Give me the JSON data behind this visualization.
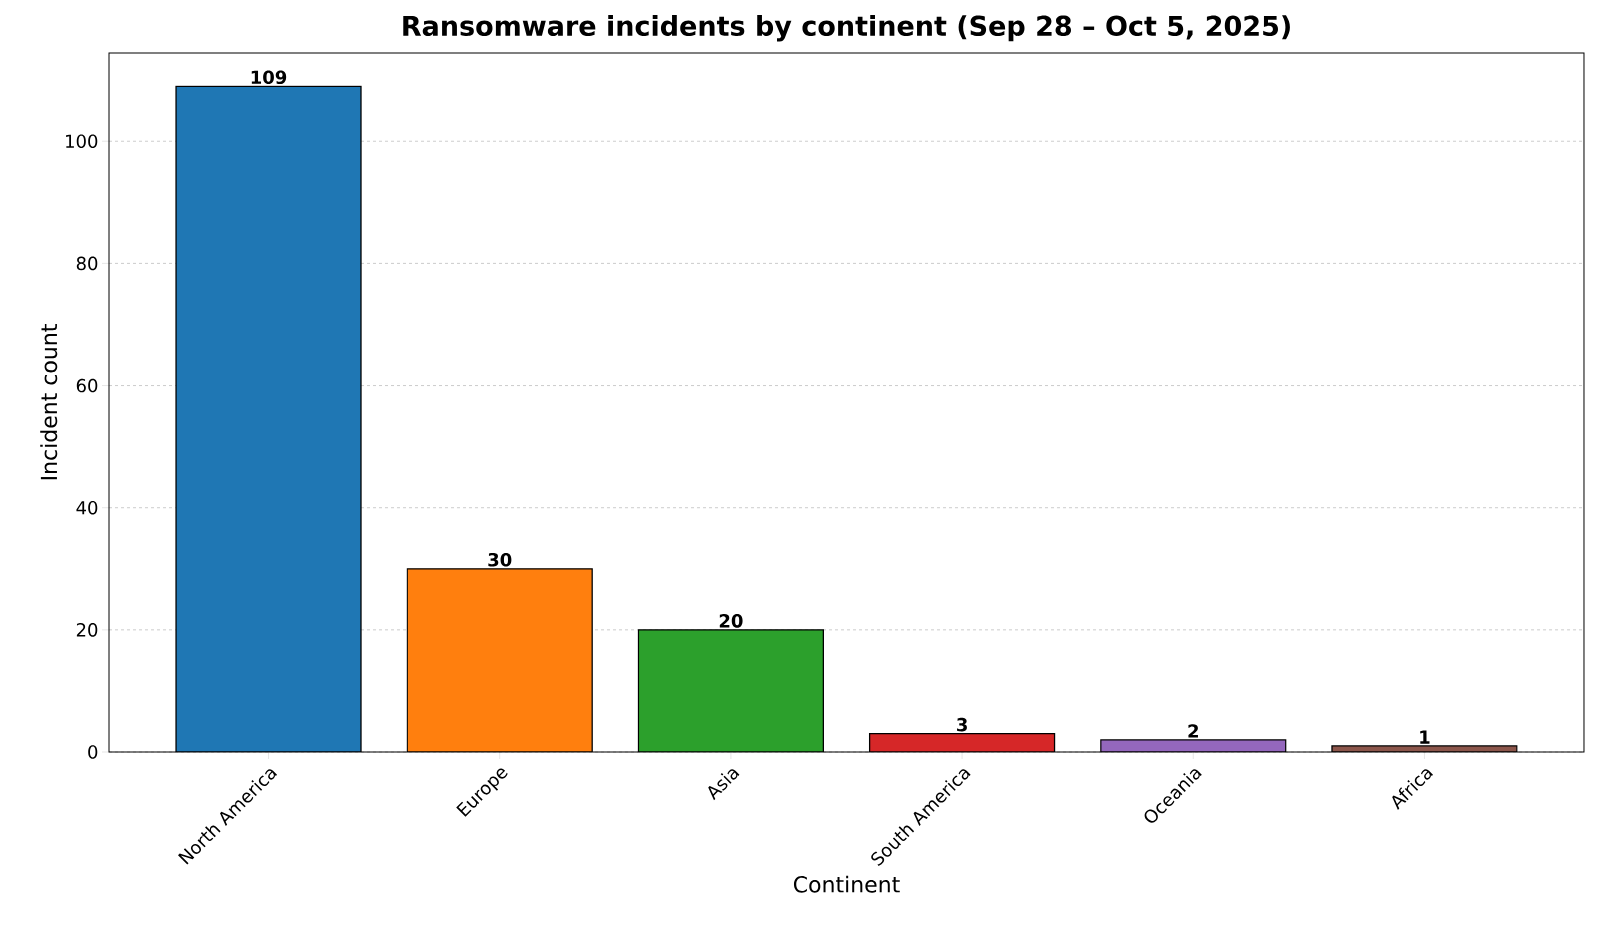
{
  "chart_data": {
    "type": "bar",
    "title": "Ransomware incidents by continent (Sep 28 – Oct 5, 2025)",
    "xlabel": "Continent",
    "ylabel": "Incident count",
    "categories": [
      "North America",
      "Europe",
      "Asia",
      "South America",
      "Oceania",
      "Africa"
    ],
    "values": [
      109,
      30,
      20,
      3,
      2,
      1
    ],
    "colors": [
      "#1f77b4",
      "#ff7f0e",
      "#2ca02c",
      "#d62728",
      "#9467bd",
      "#8c564b"
    ],
    "ylim": [
      0,
      114.45
    ],
    "yticks": [
      0,
      20,
      40,
      60,
      80,
      100
    ],
    "grid": "y",
    "data_labels": true
  }
}
